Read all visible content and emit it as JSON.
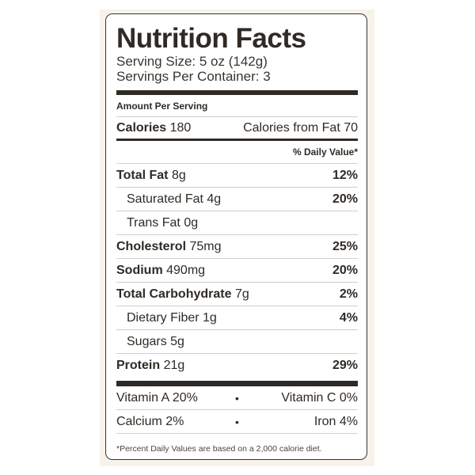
{
  "title": "Nutrition Facts",
  "serving_size": "Serving Size: 5 oz (142g)",
  "servings_per_container": "Servings Per Container: 3",
  "amount_per_serving": "Amount Per Serving",
  "calories": {
    "label": "Calories",
    "value": "180",
    "from_fat": "Calories from Fat 70"
  },
  "daily_value_header": "% Daily Value*",
  "nutrients": [
    {
      "label": "Total Fat",
      "amount": "8g",
      "dv": "12%",
      "bold": true
    },
    {
      "label": "Saturated Fat",
      "amount": "4g",
      "dv": "20%",
      "bold": false
    },
    {
      "label": "Trans Fat",
      "amount": "0g",
      "dv": "",
      "bold": false
    },
    {
      "label": "Cholesterol",
      "amount": "75mg",
      "dv": "25%",
      "bold": true
    },
    {
      "label": "Sodium",
      "amount": "490mg",
      "dv": "20%",
      "bold": true
    },
    {
      "label": "Total Carbohydrate",
      "amount": "7g",
      "dv": "2%",
      "bold": true
    },
    {
      "label": "Dietary Fiber",
      "amount": "1g",
      "dv": "4%",
      "bold": false
    },
    {
      "label": "Sugars",
      "amount": "5g",
      "dv": "",
      "bold": false
    },
    {
      "label": "Protein",
      "amount": "21g",
      "dv": "29%",
      "bold": true
    }
  ],
  "vitamins": [
    {
      "left": "Vitamin A 20%",
      "separator": "•",
      "right": "Vitamin C 0%"
    },
    {
      "left": "Calcium 2%",
      "separator": "•",
      "right": "Iron 4%"
    }
  ],
  "footnote": "*Percent Daily Values are based on a 2,000 calorie diet.",
  "colors": {
    "text": "#2f2a25",
    "panel": "#f7f3ea",
    "divider": "#cfcfcf"
  }
}
